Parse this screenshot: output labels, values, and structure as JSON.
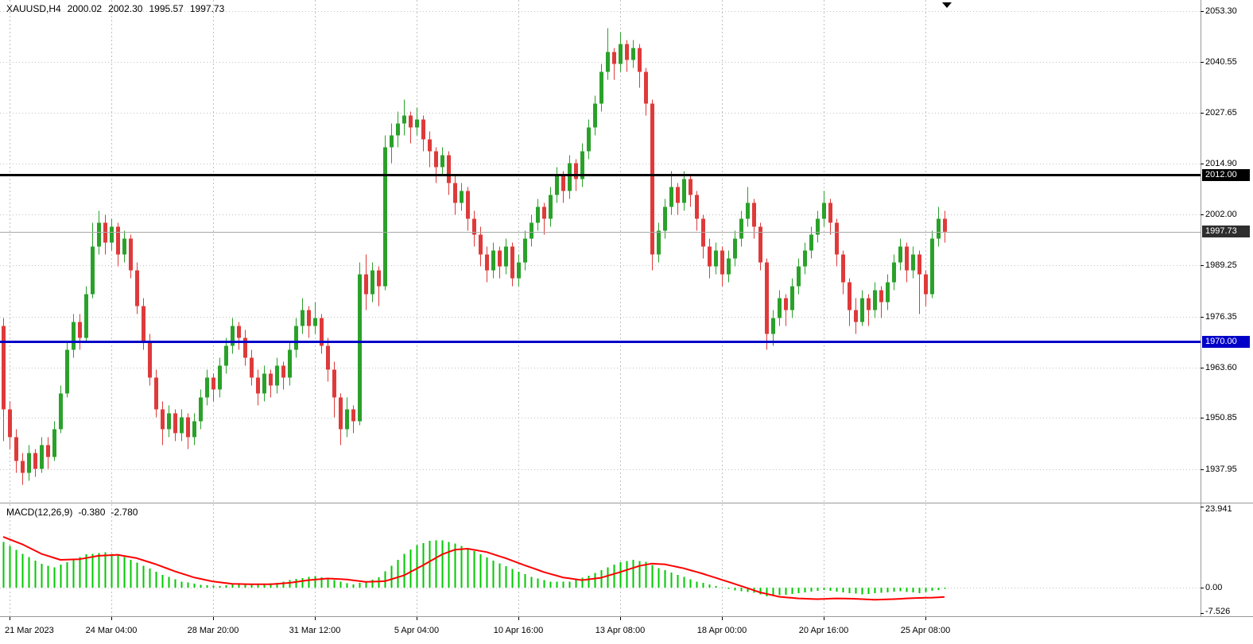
{
  "header": {
    "symbol_period": "XAUUSD,H4",
    "open": "2000.02",
    "high": "2002.30",
    "low": "1995.57",
    "close": "1997.73"
  },
  "indicator_label": {
    "name": "MACD(12,26,9)",
    "macd_value": "-0.380",
    "signal_value": "-2.780"
  },
  "price_axis_labels": [
    "2053.30",
    "2040.55",
    "2027.65",
    "2014.90",
    "2002.00",
    "1989.25",
    "1976.35",
    "1963.60",
    "1950.85",
    "1937.95"
  ],
  "macd_axis_labels": [
    "23.941",
    "0.00",
    "-7.526"
  ],
  "levels": {
    "resistance": {
      "price": 2012.0,
      "label": "2012.00"
    },
    "support": {
      "price": 1970.0,
      "label": "1970.00"
    }
  },
  "current_price": {
    "value": 1997.73,
    "label": "1997.73"
  },
  "colors": {
    "background": "#ffffff",
    "grid": "#c0c0c0",
    "bull": "#2aa12a",
    "bear": "#df3a3a",
    "macd_histogram": "#00c800",
    "macd_signal": "#ff0000",
    "resistance_line": "#000000",
    "support_line": "#0000c8",
    "current_price_line": "#a8a8a8",
    "current_badge_bg": "#2e2e2e",
    "separator": "#9a9a9a",
    "axis_text": "#000000"
  },
  "chart_data": {
    "type": "candlestick",
    "symbol": "XAUUSD",
    "timeframe": "H4",
    "title": "XAUUSD,H4 2000.02 2002.30 1995.57 1997.73",
    "legend_position": "top-left",
    "grid": true,
    "price_pane": {
      "y_range": [
        1929.7,
        2056.1
      ],
      "ticks": [
        2053.3,
        2040.55,
        2027.65,
        2014.9,
        2002.0,
        1989.25,
        1976.35,
        1963.6,
        1950.85,
        1937.95
      ]
    },
    "time_ticks": [
      {
        "bar": 1,
        "label": "21 Mar 2023"
      },
      {
        "bar": 17,
        "label": "24 Mar 04:00"
      },
      {
        "bar": 33,
        "label": "28 Mar 20:00"
      },
      {
        "bar": 49,
        "label": "31 Mar 12:00"
      },
      {
        "bar": 65,
        "label": "5 Apr 04:00"
      },
      {
        "bar": 81,
        "label": "10 Apr 16:00"
      },
      {
        "bar": 97,
        "label": "13 Apr 08:00"
      },
      {
        "bar": 113,
        "label": "18 Apr 00:00"
      },
      {
        "bar": 129,
        "label": "20 Apr 16:00"
      },
      {
        "bar": 145,
        "label": "25 Apr 08:00"
      }
    ],
    "candles": [
      [
        1974,
        1976,
        1945,
        1953
      ],
      [
        1953,
        1955,
        1943,
        1946
      ],
      [
        1946,
        1948,
        1937,
        1940
      ],
      [
        1940,
        1942,
        1934,
        1937
      ],
      [
        1937,
        1944,
        1935,
        1942
      ],
      [
        1942,
        1943,
        1936,
        1938
      ],
      [
        1938,
        1946,
        1937,
        1944
      ],
      [
        1944,
        1946,
        1938,
        1941
      ],
      [
        1941,
        1950,
        1940,
        1948
      ],
      [
        1948,
        1959,
        1947,
        1957
      ],
      [
        1957,
        1970,
        1956,
        1968
      ],
      [
        1968,
        1977,
        1966,
        1975
      ],
      [
        1975,
        1977,
        1968,
        1971
      ],
      [
        1971,
        1984,
        1970,
        1982
      ],
      [
        1982,
        2000,
        1981,
        1994
      ],
      [
        1994,
        2003,
        1992,
        2000
      ],
      [
        2000,
        2002,
        1992,
        1995
      ],
      [
        1995,
        2001,
        1993,
        1999
      ],
      [
        1999,
        2000,
        1989,
        1992
      ],
      [
        1992,
        1998,
        1990,
        1996
      ],
      [
        1996,
        1997,
        1986,
        1988
      ],
      [
        1988,
        1990,
        1977,
        1979
      ],
      [
        1979,
        1981,
        1968,
        1970
      ],
      [
        1970,
        1972,
        1959,
        1961
      ],
      [
        1961,
        1963,
        1951,
        1953
      ],
      [
        1953,
        1955,
        1944,
        1948
      ],
      [
        1948,
        1954,
        1946,
        1952
      ],
      [
        1952,
        1953,
        1945,
        1947
      ],
      [
        1947,
        1953,
        1945,
        1951
      ],
      [
        1951,
        1952,
        1943,
        1946
      ],
      [
        1946,
        1952,
        1944,
        1950
      ],
      [
        1950,
        1958,
        1948,
        1956
      ],
      [
        1956,
        1963,
        1954,
        1961
      ],
      [
        1961,
        1962,
        1955,
        1958
      ],
      [
        1958,
        1966,
        1956,
        1964
      ],
      [
        1964,
        1971,
        1962,
        1969
      ],
      [
        1969,
        1976,
        1967,
        1974
      ],
      [
        1974,
        1975,
        1968,
        1971
      ],
      [
        1971,
        1973,
        1964,
        1966
      ],
      [
        1966,
        1968,
        1959,
        1961
      ],
      [
        1961,
        1963,
        1954,
        1957
      ],
      [
        1957,
        1964,
        1955,
        1962
      ],
      [
        1962,
        1963,
        1956,
        1959
      ],
      [
        1959,
        1966,
        1957,
        1964
      ],
      [
        1964,
        1965,
        1958,
        1961
      ],
      [
        1961,
        1970,
        1959,
        1968
      ],
      [
        1968,
        1976,
        1966,
        1974
      ],
      [
        1974,
        1981,
        1972,
        1978
      ],
      [
        1978,
        1979,
        1971,
        1974
      ],
      [
        1974,
        1980,
        1972,
        1976
      ],
      [
        1976,
        1977,
        1967,
        1969
      ],
      [
        1969,
        1971,
        1960,
        1963
      ],
      [
        1963,
        1965,
        1951,
        1956
      ],
      [
        1956,
        1957,
        1944,
        1948
      ],
      [
        1948,
        1956,
        1946,
        1953
      ],
      [
        1953,
        1954,
        1947,
        1950
      ],
      [
        1950,
        1990,
        1949,
        1987
      ],
      [
        1987,
        1992,
        1978,
        1982
      ],
      [
        1982,
        1990,
        1980,
        1988
      ],
      [
        1988,
        1989,
        1979,
        1984
      ],
      [
        1984,
        2022,
        1983,
        2019
      ],
      [
        2019,
        2025,
        2015,
        2022
      ],
      [
        2022,
        2028,
        2019,
        2025
      ],
      [
        2025,
        2031,
        2022,
        2027
      ],
      [
        2027,
        2028,
        2020,
        2024
      ],
      [
        2024,
        2029,
        2022,
        2026
      ],
      [
        2026,
        2027,
        2018,
        2021
      ],
      [
        2021,
        2023,
        2014,
        2018
      ],
      [
        2018,
        2019,
        2010,
        2014
      ],
      [
        2014,
        2019,
        2012,
        2017
      ],
      [
        2017,
        2018,
        2007,
        2010
      ],
      [
        2010,
        2012,
        2002,
        2005
      ],
      [
        2005,
        2010,
        2003,
        2008
      ],
      [
        2008,
        2009,
        1998,
        2001
      ],
      [
        2001,
        2003,
        1994,
        1997
      ],
      [
        1997,
        1999,
        1989,
        1992
      ],
      [
        1992,
        1994,
        1985,
        1988
      ],
      [
        1988,
        1995,
        1986,
        1993
      ],
      [
        1993,
        1994,
        1986,
        1989
      ],
      [
        1989,
        1996,
        1987,
        1994
      ],
      [
        1994,
        1995,
        1984,
        1986
      ],
      [
        1986,
        1992,
        1984,
        1990
      ],
      [
        1990,
        1998,
        1988,
        1996
      ],
      [
        1996,
        2002,
        1994,
        2000
      ],
      [
        2000,
        2006,
        1998,
        2004
      ],
      [
        2004,
        2005,
        1997,
        2001
      ],
      [
        2001,
        2009,
        1999,
        2007
      ],
      [
        2007,
        2014,
        2005,
        2012
      ],
      [
        2012,
        2013,
        2005,
        2008
      ],
      [
        2008,
        2017,
        2006,
        2015
      ],
      [
        2015,
        2016,
        2008,
        2011
      ],
      [
        2011,
        2020,
        2009,
        2018
      ],
      [
        2018,
        2026,
        2016,
        2024
      ],
      [
        2024,
        2032,
        2022,
        2030
      ],
      [
        2030,
        2040,
        2028,
        2038
      ],
      [
        2038,
        2049,
        2036,
        2043
      ],
      [
        2043,
        2044,
        2036,
        2040
      ],
      [
        2040,
        2048,
        2038,
        2045
      ],
      [
        2045,
        2046,
        2038,
        2041
      ],
      [
        2041,
        2046,
        2039,
        2044
      ],
      [
        2044,
        2045,
        2034,
        2038
      ],
      [
        2038,
        2039,
        2027,
        2030
      ],
      [
        2030,
        2031,
        1988,
        1992
      ],
      [
        1992,
        2000,
        1990,
        1998
      ],
      [
        1998,
        2006,
        1996,
        2004
      ],
      [
        2004,
        2013,
        2002,
        2009
      ],
      [
        2009,
        2010,
        2002,
        2005
      ],
      [
        2005,
        2013,
        2003,
        2011
      ],
      [
        2011,
        2012,
        2004,
        2007
      ],
      [
        2007,
        2008,
        1998,
        2001
      ],
      [
        2001,
        2002,
        1991,
        1994
      ],
      [
        1994,
        1996,
        1986,
        1989
      ],
      [
        1989,
        1995,
        1987,
        1993
      ],
      [
        1993,
        1994,
        1984,
        1987
      ],
      [
        1987,
        1993,
        1985,
        1991
      ],
      [
        1991,
        1998,
        1989,
        1996
      ],
      [
        1996,
        2003,
        1994,
        2001
      ],
      [
        2001,
        2009,
        1999,
        2005
      ],
      [
        2005,
        2006,
        1996,
        1999
      ],
      [
        1999,
        2000,
        1988,
        1990
      ],
      [
        1990,
        1991,
        1968,
        1972
      ],
      [
        1972,
        1978,
        1969,
        1976
      ],
      [
        1976,
        1983,
        1974,
        1981
      ],
      [
        1981,
        1982,
        1974,
        1978
      ],
      [
        1978,
        1986,
        1976,
        1984
      ],
      [
        1984,
        1991,
        1982,
        1989
      ],
      [
        1989,
        1995,
        1987,
        1993
      ],
      [
        1993,
        1999,
        1991,
        1997
      ],
      [
        1997,
        2003,
        1995,
        2001
      ],
      [
        2001,
        2008,
        1999,
        2005
      ],
      [
        2005,
        2006,
        1997,
        2000
      ],
      [
        2000,
        2001,
        1989,
        1992
      ],
      [
        1992,
        1993,
        1982,
        1985
      ],
      [
        1985,
        1986,
        1974,
        1978
      ],
      [
        1978,
        1981,
        1972,
        1975
      ],
      [
        1975,
        1983,
        1974,
        1981
      ],
      [
        1981,
        1982,
        1974,
        1978
      ],
      [
        1978,
        1985,
        1976,
        1983
      ],
      [
        1983,
        1984,
        1976,
        1980
      ],
      [
        1980,
        1987,
        1978,
        1985
      ],
      [
        1985,
        1992,
        1983,
        1990
      ],
      [
        1990,
        1996,
        1988,
        1994
      ],
      [
        1994,
        1995,
        1985,
        1988
      ],
      [
        1988,
        1994,
        1986,
        1992
      ],
      [
        1992,
        1993,
        1977,
        1987
      ],
      [
        1987,
        1988,
        1979,
        1982
      ],
      [
        1982,
        1998,
        1981,
        1996
      ],
      [
        1996,
        2004,
        1994,
        2001
      ],
      [
        2001,
        2003,
        1995,
        1997.73
      ]
    ],
    "horizontal_lines": [
      {
        "price": 2012.0,
        "color": "#000000",
        "width": 3,
        "name": "resistance-2012"
      },
      {
        "price": 1970.0,
        "color": "#0000c8",
        "width": 3,
        "name": "support-1970"
      }
    ],
    "last_price": 1997.73,
    "macd_pane": {
      "label": "MACD(12,26,9)",
      "last_macd": -0.38,
      "last_signal": -2.78,
      "y_range": [
        -8.45,
        24.4
      ],
      "ticks": [
        23.941,
        0.0,
        -7.526
      ]
    },
    "macd_keypoints": [
      [
        0,
        13.5
      ],
      [
        3,
        10.0
      ],
      [
        6,
        7.0
      ],
      [
        8,
        6.0
      ],
      [
        10,
        7.5
      ],
      [
        13,
        9.8
      ],
      [
        16,
        10.4
      ],
      [
        19,
        9.0
      ],
      [
        22,
        6.5
      ],
      [
        25,
        3.8
      ],
      [
        28,
        1.8
      ],
      [
        31,
        0.8
      ],
      [
        34,
        0.5
      ],
      [
        37,
        1.2
      ],
      [
        40,
        0.9
      ],
      [
        43,
        1.4
      ],
      [
        46,
        2.6
      ],
      [
        49,
        3.4
      ],
      [
        52,
        2.2
      ],
      [
        55,
        0.9
      ],
      [
        57,
        1.8
      ],
      [
        59,
        3.0
      ],
      [
        61,
        6.5
      ],
      [
        63,
        10.0
      ],
      [
        65,
        12.5
      ],
      [
        67,
        13.8
      ],
      [
        69,
        14.0
      ],
      [
        71,
        13.0
      ],
      [
        74,
        10.8
      ],
      [
        77,
        8.0
      ],
      [
        80,
        5.5
      ],
      [
        83,
        3.2
      ],
      [
        86,
        1.8
      ],
      [
        89,
        1.8
      ],
      [
        92,
        3.5
      ],
      [
        95,
        6.0
      ],
      [
        97,
        7.5
      ],
      [
        99,
        8.2
      ],
      [
        101,
        7.6
      ],
      [
        103,
        5.8
      ],
      [
        106,
        3.8
      ],
      [
        109,
        1.8
      ],
      [
        112,
        0.5
      ],
      [
        115,
        -0.8
      ],
      [
        118,
        -1.5
      ],
      [
        120,
        -2.6
      ],
      [
        123,
        -2.1
      ],
      [
        126,
        -1.4
      ],
      [
        129,
        -0.7
      ],
      [
        132,
        -1.4
      ],
      [
        135,
        -2.0
      ],
      [
        138,
        -1.5
      ],
      [
        141,
        -1.1
      ],
      [
        144,
        -1.6
      ],
      [
        146,
        -1.0
      ],
      [
        148,
        -0.38
      ]
    ],
    "signal_keypoints": [
      [
        0,
        15.0
      ],
      [
        3,
        12.8
      ],
      [
        6,
        10.0
      ],
      [
        9,
        8.2
      ],
      [
        12,
        8.4
      ],
      [
        15,
        9.4
      ],
      [
        18,
        9.7
      ],
      [
        21,
        8.7
      ],
      [
        24,
        6.9
      ],
      [
        27,
        4.8
      ],
      [
        30,
        3.0
      ],
      [
        33,
        1.8
      ],
      [
        36,
        1.1
      ],
      [
        39,
        1.0
      ],
      [
        42,
        1.0
      ],
      [
        45,
        1.4
      ],
      [
        48,
        2.2
      ],
      [
        51,
        2.7
      ],
      [
        54,
        2.4
      ],
      [
        57,
        1.7
      ],
      [
        60,
        1.9
      ],
      [
        63,
        3.6
      ],
      [
        66,
        6.6
      ],
      [
        69,
        9.8
      ],
      [
        71,
        11.2
      ],
      [
        73,
        11.5
      ],
      [
        76,
        10.5
      ],
      [
        79,
        8.7
      ],
      [
        82,
        6.6
      ],
      [
        85,
        4.6
      ],
      [
        88,
        3.0
      ],
      [
        91,
        2.2
      ],
      [
        94,
        2.9
      ],
      [
        97,
        4.6
      ],
      [
        100,
        6.4
      ],
      [
        102,
        7.1
      ],
      [
        104,
        6.9
      ],
      [
        107,
        5.7
      ],
      [
        110,
        4.1
      ],
      [
        113,
        2.3
      ],
      [
        116,
        0.5
      ],
      [
        119,
        -1.4
      ],
      [
        122,
        -2.7
      ],
      [
        125,
        -3.2
      ],
      [
        128,
        -3.4
      ],
      [
        131,
        -3.2
      ],
      [
        134,
        -3.3
      ],
      [
        137,
        -3.6
      ],
      [
        140,
        -3.4
      ],
      [
        143,
        -3.1
      ],
      [
        146,
        -2.95
      ],
      [
        148,
        -2.78
      ]
    ]
  }
}
